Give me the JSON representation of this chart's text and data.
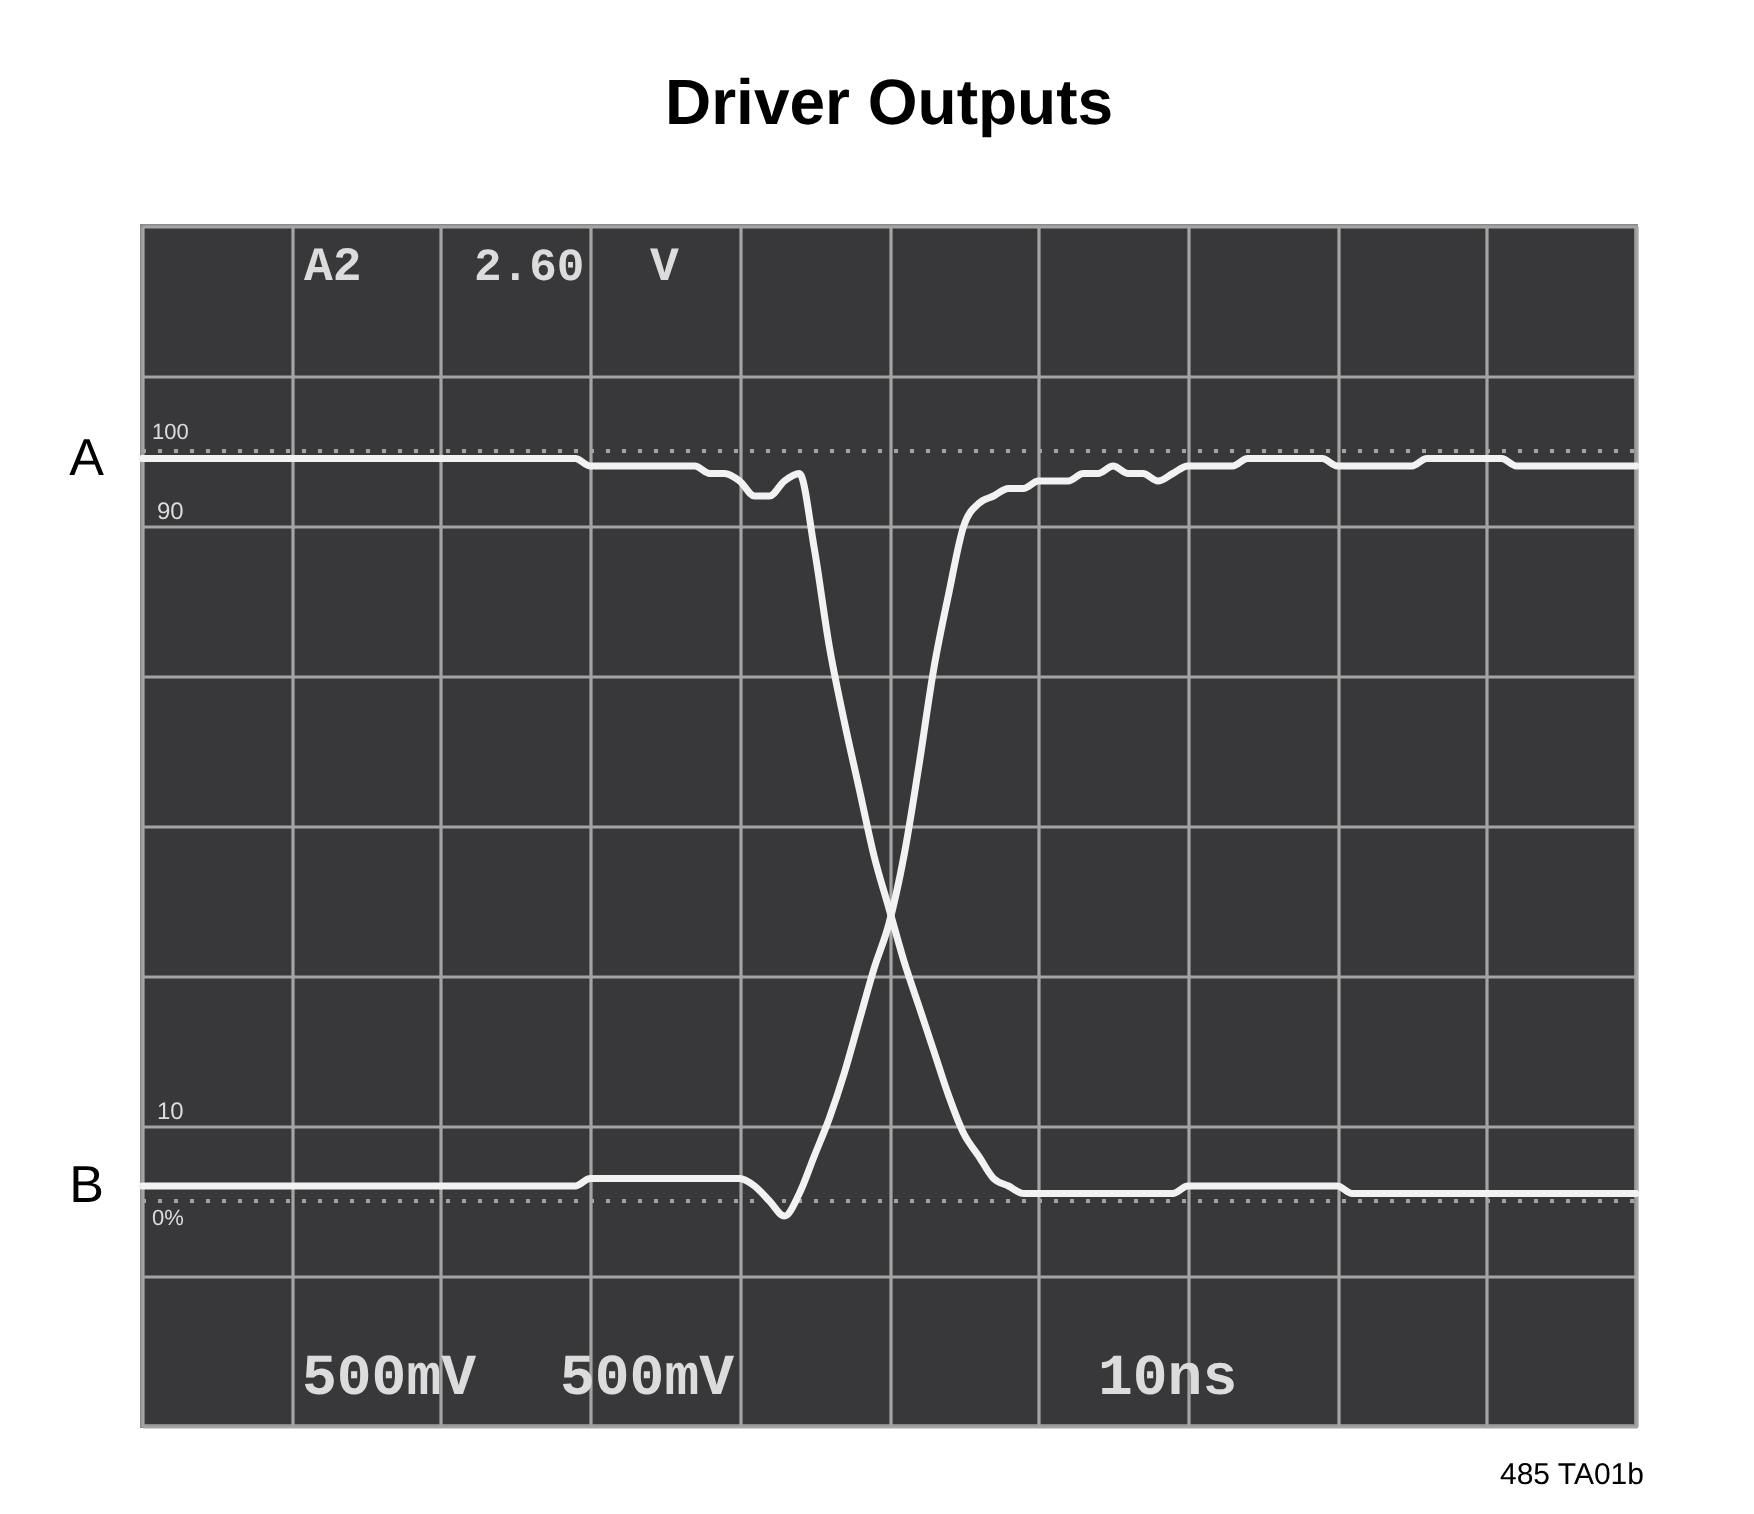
{
  "chart_data": {
    "type": "line",
    "title": "Driver Outputs",
    "categories": [
      null,
      null,
      null,
      null,
      null,
      null,
      null,
      null,
      null,
      null,
      null,
      null,
      null,
      null,
      null,
      null,
      null,
      null,
      null,
      null,
      null,
      null,
      null,
      null,
      null,
      null,
      null,
      null,
      null,
      null,
      null,
      null,
      null,
      null,
      null,
      null,
      null,
      null,
      null,
      null,
      null,
      null,
      null,
      null,
      null,
      null,
      null,
      null,
      null,
      null,
      null,
      null,
      null,
      null,
      null,
      null,
      null,
      null,
      null,
      null,
      null,
      null,
      null,
      null,
      null,
      null,
      null,
      null,
      null,
      null,
      null,
      null,
      null,
      null,
      null,
      null,
      null,
      null,
      null,
      null,
      null,
      null,
      null,
      null,
      null,
      null,
      null,
      null,
      null,
      null,
      null,
      null,
      null,
      null,
      null,
      null,
      null,
      null,
      null,
      null,
      null
    ],
    "series": [
      {
        "name": "A",
        "color": "#f2f2f2",
        "values": [
          99,
          99,
          99,
          99,
          99,
          99,
          99,
          99,
          99,
          99,
          99,
          99,
          99,
          99,
          99,
          99,
          99,
          99,
          99,
          99,
          99,
          99,
          99,
          99,
          99,
          99,
          99,
          99,
          99,
          99,
          98,
          98,
          98,
          98,
          98,
          98,
          98,
          98,
          97,
          97,
          96,
          94,
          94,
          96,
          97,
          87,
          74,
          64,
          55,
          46,
          39,
          32,
          26,
          20,
          14,
          9,
          6,
          3,
          2,
          1,
          1,
          1,
          1,
          1,
          1,
          1,
          1,
          1,
          1,
          1,
          2,
          2,
          2,
          2,
          2,
          2,
          2,
          2,
          2,
          2,
          2,
          1,
          1,
          1,
          1,
          1,
          1,
          1,
          1,
          1,
          1,
          1,
          1,
          1,
          1,
          1,
          1,
          1,
          1,
          1,
          1
        ]
      },
      {
        "name": "B",
        "color": "#f2f2f2",
        "values": [
          2,
          2,
          2,
          2,
          2,
          2,
          2,
          2,
          2,
          2,
          2,
          2,
          2,
          2,
          2,
          2,
          2,
          2,
          2,
          2,
          2,
          2,
          2,
          2,
          2,
          2,
          2,
          2,
          2,
          2,
          3,
          3,
          3,
          3,
          3,
          3,
          3,
          3,
          3,
          3,
          3,
          2,
          0,
          -2,
          1,
          6,
          11,
          17,
          24,
          31,
          37,
          46,
          58,
          71,
          81,
          90,
          93,
          94,
          95,
          95,
          96,
          96,
          96,
          97,
          97,
          98,
          97,
          97,
          96,
          97,
          98,
          98,
          98,
          98,
          99,
          99,
          99,
          99,
          99,
          99,
          98,
          98,
          98,
          98,
          98,
          98,
          99,
          99,
          99,
          99,
          99,
          99,
          98,
          98,
          98,
          98,
          98,
          98,
          98,
          98,
          98
        ]
      }
    ],
    "ylim": [
      -30,
      130
    ],
    "yticks": [
      {
        "value": -30,
        "label": null
      },
      {
        "value": -10,
        "label": null
      },
      10,
      {
        "value": 30,
        "label": null
      },
      {
        "value": 50,
        "label": null
      },
      {
        "value": 70,
        "label": null
      },
      90,
      {
        "value": 110,
        "label": null
      },
      {
        "value": 130,
        "label": null
      }
    ],
    "tick_labels": "y",
    "grid": true,
    "ref_lines": [
      {
        "axis": "y",
        "value": 100,
        "label": "100",
        "line_style": "dotted",
        "color": "#a4a4a4"
      },
      {
        "axis": "y",
        "value": 0,
        "label": "0%",
        "line_style": "dotted",
        "color": "#a4a4a4"
      }
    ],
    "annotations": [
      "A2",
      "2.60",
      "V",
      "500mV",
      "500mV",
      "10ns",
      "485 TA01b"
    ]
  }
}
